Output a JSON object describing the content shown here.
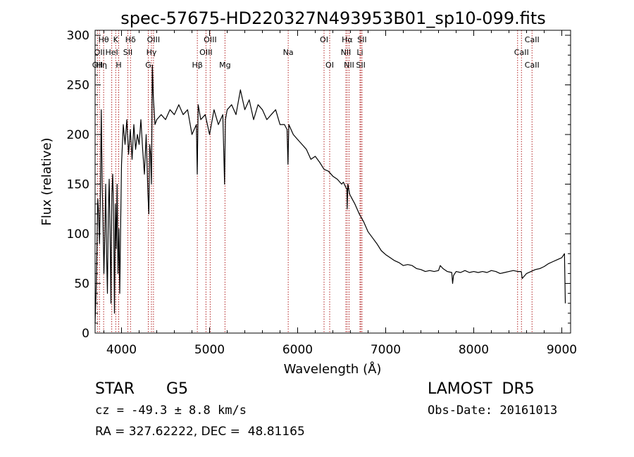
{
  "chart_data": {
    "type": "line",
    "title": "spec-57675-HD220327N493953B01_sp10-099.fits",
    "xlabel": "Wavelength (Å)",
    "ylabel": "Flux (relative)",
    "xlim": [
      3700,
      9100
    ],
    "ylim": [
      0,
      305
    ],
    "xticks": [
      4000,
      5000,
      6000,
      7000,
      8000,
      9000
    ],
    "yticks": [
      0,
      50,
      100,
      150,
      200,
      250,
      300
    ],
    "grid": false,
    "line_color": "#000000",
    "marker_color": "#b22222",
    "series": [
      {
        "x": [
          3700,
          3710,
          3720,
          3730,
          3740,
          3750,
          3760,
          3770,
          3780,
          3790,
          3800,
          3810,
          3820,
          3830,
          3840,
          3850,
          3860,
          3870,
          3880,
          3890,
          3900,
          3910,
          3920,
          3930,
          3940,
          3950,
          3960,
          3970,
          3980,
          3990,
          4000,
          4020,
          4040,
          4060,
          4080,
          4100,
          4120,
          4140,
          4160,
          4180,
          4200,
          4220,
          4240,
          4260,
          4280,
          4300,
          4310,
          4320,
          4330,
          4340,
          4350,
          4360,
          4380,
          4400,
          4450,
          4500,
          4550,
          4600,
          4650,
          4700,
          4750,
          4800,
          4850,
          4860,
          4870,
          4900,
          4950,
          5000,
          5050,
          5100,
          5150,
          5170,
          5180,
          5200,
          5250,
          5300,
          5350,
          5400,
          5450,
          5500,
          5550,
          5600,
          5650,
          5700,
          5750,
          5800,
          5850,
          5880,
          5890,
          5900,
          5950,
          6000,
          6050,
          6100,
          6150,
          6200,
          6250,
          6300,
          6350,
          6400,
          6450,
          6500,
          6520,
          6540,
          6560,
          6563,
          6570,
          6590,
          6620,
          6650,
          6700,
          6750,
          6800,
          6850,
          6900,
          6950,
          7000,
          7050,
          7100,
          7150,
          7200,
          7250,
          7300,
          7350,
          7400,
          7450,
          7500,
          7550,
          7600,
          7620,
          7650,
          7700,
          7750,
          7760,
          7770,
          7800,
          7850,
          7900,
          7950,
          8000,
          8050,
          8100,
          8150,
          8200,
          8250,
          8300,
          8350,
          8400,
          8450,
          8500,
          8540,
          8550,
          8600,
          8650,
          8700,
          8750,
          8800,
          8850,
          8900,
          8950,
          9000,
          9030,
          9040
        ],
        "y": [
          10,
          40,
          80,
          135,
          120,
          90,
          140,
          225,
          150,
          110,
          60,
          100,
          150,
          80,
          40,
          120,
          155,
          100,
          30,
          140,
          160,
          120,
          20,
          130,
          85,
          150,
          60,
          105,
          40,
          110,
          170,
          210,
          190,
          215,
          180,
          205,
          175,
          210,
          185,
          200,
          190,
          215,
          185,
          160,
          200,
          140,
          120,
          190,
          180,
          150,
          270,
          240,
          210,
          215,
          220,
          215,
          225,
          220,
          230,
          220,
          225,
          200,
          210,
          160,
          230,
          215,
          220,
          200,
          225,
          210,
          220,
          150,
          215,
          225,
          230,
          220,
          245,
          225,
          235,
          215,
          230,
          225,
          215,
          220,
          225,
          210,
          210,
          205,
          170,
          210,
          200,
          195,
          190,
          185,
          175,
          178,
          172,
          165,
          163,
          158,
          155,
          150,
          152,
          148,
          145,
          125,
          150,
          140,
          135,
          130,
          120,
          112,
          102,
          96,
          90,
          83,
          79,
          76,
          73,
          71,
          68,
          69,
          68,
          65,
          64,
          62,
          63,
          62,
          63,
          68,
          65,
          62,
          61,
          50,
          58,
          62,
          61,
          63,
          61,
          62,
          61,
          62,
          61,
          63,
          62,
          60,
          61,
          62,
          63,
          62,
          62,
          55,
          60,
          62,
          64,
          65,
          67,
          70,
          72,
          74,
          76,
          80,
          30
        ]
      }
    ],
    "lines": [
      {
        "x": 3797,
        "labels": [
          "Hθ"
        ]
      },
      {
        "x": 3727,
        "labels": [
          "OII"
        ]
      },
      {
        "x": 3750,
        "labels": [
          "OII",
          "Hη"
        ]
      },
      {
        "x": 3889,
        "labels": [
          "HeI"
        ]
      },
      {
        "x": 3934,
        "labels": [
          "K"
        ]
      },
      {
        "x": 3968,
        "labels": [
          "H"
        ]
      },
      {
        "x": 4072,
        "labels": [
          "SII"
        ]
      },
      {
        "x": 4102,
        "labels": [
          "Hδ"
        ]
      },
      {
        "x": 4304,
        "labels": [
          "G"
        ]
      },
      {
        "x": 4340,
        "labels": [
          "Hγ"
        ]
      },
      {
        "x": 4363,
        "labels": [
          "OIII"
        ]
      },
      {
        "x": 4861,
        "labels": [
          "Hβ"
        ]
      },
      {
        "x": 4959,
        "labels": [
          "OIII"
        ]
      },
      {
        "x": 5007,
        "labels": [
          "OIII"
        ]
      },
      {
        "x": 5175,
        "labels": [
          "Mg"
        ]
      },
      {
        "x": 5893,
        "labels": [
          "Na"
        ]
      },
      {
        "x": 6300,
        "labels": [
          "OI"
        ]
      },
      {
        "x": 6364,
        "labels": [
          "OI"
        ]
      },
      {
        "x": 6548,
        "labels": [
          "NII"
        ]
      },
      {
        "x": 6563,
        "labels": [
          "Hα"
        ]
      },
      {
        "x": 6584,
        "labels": [
          "NII"
        ]
      },
      {
        "x": 6708,
        "labels": [
          "Li"
        ]
      },
      {
        "x": 6717,
        "labels": [
          "SII"
        ]
      },
      {
        "x": 6731,
        "labels": [
          "SII"
        ]
      },
      {
        "x": 8498,
        "labels": [
          "CaII"
        ]
      },
      {
        "x": 8542,
        "labels": [
          "CaII"
        ]
      },
      {
        "x": 8662,
        "labels": [
          "CaII"
        ]
      }
    ],
    "line_label_slots": [
      {
        "text": "Hθ",
        "x": 3797,
        "row": 0
      },
      {
        "text": "K",
        "x": 3934,
        "row": 0
      },
      {
        "text": "Hδ",
        "x": 4102,
        "row": 0
      },
      {
        "text": "OIII",
        "x": 4363,
        "row": 0
      },
      {
        "text": "OIII",
        "x": 5007,
        "row": 0
      },
      {
        "text": "OI",
        "x": 6300,
        "row": 0
      },
      {
        "text": "Hα",
        "x": 6563,
        "row": 0
      },
      {
        "text": "SII",
        "x": 6731,
        "row": 0
      },
      {
        "text": "CaII",
        "x": 8662,
        "row": 0
      },
      {
        "text": "OII",
        "x": 3750,
        "row": 1
      },
      {
        "text": "HeI",
        "x": 3889,
        "row": 1
      },
      {
        "text": "SII",
        "x": 4072,
        "row": 1
      },
      {
        "text": "Hγ",
        "x": 4340,
        "row": 1
      },
      {
        "text": "OIII",
        "x": 4959,
        "row": 1
      },
      {
        "text": "Na",
        "x": 5893,
        "row": 1
      },
      {
        "text": "NII",
        "x": 6548,
        "row": 1
      },
      {
        "text": "Li",
        "x": 6708,
        "row": 1
      },
      {
        "text": "CaII",
        "x": 8542,
        "row": 1
      },
      {
        "text": "OII",
        "x": 3727,
        "row": 2
      },
      {
        "text": "Hη",
        "x": 3775,
        "row": 2
      },
      {
        "text": "H",
        "x": 3968,
        "row": 2
      },
      {
        "text": "G",
        "x": 4304,
        "row": 2
      },
      {
        "text": "Hβ",
        "x": 4861,
        "row": 2
      },
      {
        "text": "Mg",
        "x": 5175,
        "row": 2
      },
      {
        "text": "OI",
        "x": 6364,
        "row": 2
      },
      {
        "text": "NII",
        "x": 6584,
        "row": 2
      },
      {
        "text": "SII",
        "x": 6717,
        "row": 2
      },
      {
        "text": "CaII",
        "x": 8662,
        "row": 2
      }
    ]
  },
  "info": {
    "object_class": "STAR",
    "subclass": "G5",
    "survey": "LAMOST  DR5",
    "velocity": "cz = -49.3 ± 8.8 km/s",
    "obs_date": "Obs-Date: 20161013",
    "coords": "RA = 327.62222, DEC =  48.81165"
  }
}
